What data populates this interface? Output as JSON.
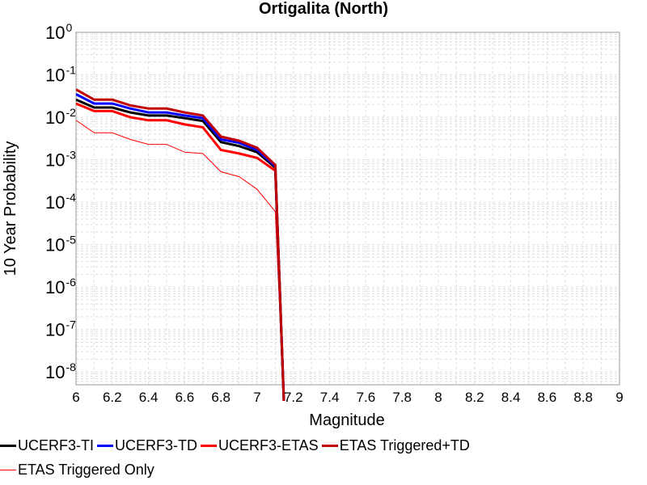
{
  "chart_data": {
    "type": "line",
    "title": "Ortigalita (North)",
    "xlabel": "Magnitude",
    "ylabel": "10 Year Probability",
    "xlim": [
      6,
      9
    ],
    "ylim_log10": [
      -8.3,
      0
    ],
    "yscale": "log",
    "grid": true,
    "legend_placement": "bottom",
    "x_ticks": [
      "6",
      "6.2",
      "6.4",
      "6.6",
      "6.8",
      "7",
      "7.2",
      "7.4",
      "7.6",
      "7.8",
      "8",
      "8.2",
      "8.4",
      "8.6",
      "8.8",
      "9"
    ],
    "y_ticks": [
      {
        "base": "10",
        "exp": "0",
        "value": 1
      },
      {
        "base": "10",
        "exp": "-1",
        "value": 0.1
      },
      {
        "base": "10",
        "exp": "-2",
        "value": 0.01
      },
      {
        "base": "10",
        "exp": "-3",
        "value": 0.001
      },
      {
        "base": "10",
        "exp": "-4",
        "value": 0.0001
      },
      {
        "base": "10",
        "exp": "-5",
        "value": 1e-05
      },
      {
        "base": "10",
        "exp": "-6",
        "value": 1e-06
      },
      {
        "base": "10",
        "exp": "-7",
        "value": 1e-07
      },
      {
        "base": "10",
        "exp": "-8",
        "value": 1e-08
      }
    ],
    "x": [
      6.0,
      6.1,
      6.2,
      6.3,
      6.4,
      6.5,
      6.6,
      6.7,
      6.8,
      6.9,
      7.0,
      7.1,
      7.15
    ],
    "series": [
      {
        "name": "UCERF3-TI",
        "color": "#000000",
        "width": 3,
        "values": [
          0.026,
          0.017,
          0.017,
          0.013,
          0.011,
          0.011,
          0.0095,
          0.0082,
          0.0026,
          0.0021,
          0.0015,
          0.00065,
          1e-09
        ]
      },
      {
        "name": "UCERF3-TD",
        "color": "#0000ff",
        "width": 3,
        "values": [
          0.035,
          0.021,
          0.021,
          0.016,
          0.013,
          0.013,
          0.011,
          0.0095,
          0.003,
          0.0025,
          0.0017,
          0.0007,
          1e-09
        ]
      },
      {
        "name": "UCERF3-ETAS",
        "color": "#ff0000",
        "width": 3,
        "values": [
          0.021,
          0.014,
          0.014,
          0.01,
          0.0085,
          0.0085,
          0.0068,
          0.0058,
          0.0017,
          0.0014,
          0.0011,
          0.00055,
          1e-09
        ]
      },
      {
        "name": "ETAS Triggered+TD",
        "color": "#c00000",
        "width": 3,
        "values": [
          0.045,
          0.026,
          0.026,
          0.019,
          0.016,
          0.016,
          0.013,
          0.011,
          0.0035,
          0.0028,
          0.0019,
          0.00075,
          1e-09
        ]
      },
      {
        "name": "ETAS Triggered Only",
        "color": "#ff0000",
        "width": 1,
        "values": [
          0.0085,
          0.0043,
          0.0043,
          0.003,
          0.0023,
          0.0023,
          0.0015,
          0.0014,
          0.00052,
          0.0004,
          0.0002,
          6e-05,
          1e-09
        ]
      }
    ]
  }
}
